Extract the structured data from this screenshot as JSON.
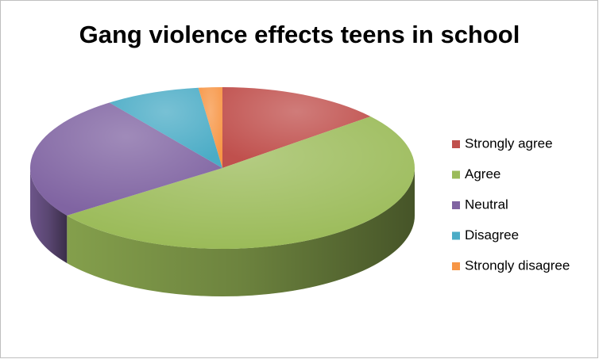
{
  "chart_data": {
    "type": "pie3d",
    "title": "Gang violence effects teens in school",
    "categories": [
      "Strongly agree",
      "Agree",
      "Neutral",
      "Disagree",
      "Strongly disagree"
    ],
    "values": [
      14,
      51,
      25,
      8,
      2
    ],
    "colors": [
      "#c0504d",
      "#9bbb59",
      "#8064a2",
      "#4bacc6",
      "#f79646"
    ],
    "legend": "right"
  }
}
